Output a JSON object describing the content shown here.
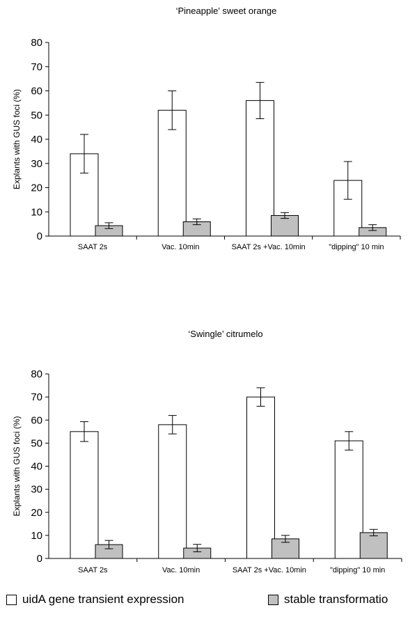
{
  "chart_data": [
    {
      "type": "bar",
      "title": "‘Pineapple’ sweet orange",
      "ylabel": "Explants with GUS foci (%)",
      "xlabel": "",
      "ylim": [
        0,
        80
      ],
      "yticks": [
        0,
        10,
        20,
        30,
        40,
        50,
        60,
        70,
        80
      ],
      "categories": [
        "SAAT 2s",
        "Vac. 10min",
        "SAAT 2s +Vac. 10min",
        "\"dipping\" 10 min"
      ],
      "series": [
        {
          "name": "uidA gene transient expression",
          "color": "#ffffff",
          "values": [
            34,
            52,
            56,
            23
          ],
          "errors": [
            8,
            8,
            7.5,
            7.8
          ]
        },
        {
          "name": "stable transformation",
          "color": "#c0c0c0",
          "values": [
            4.3,
            5.9,
            8.5,
            3.5
          ],
          "errors": [
            1.2,
            1.2,
            1.2,
            1.2
          ]
        }
      ]
    },
    {
      "type": "bar",
      "title": "‘Swingle’ citrumelo",
      "ylabel": "Explants with GUS foci (%)",
      "xlabel": "",
      "ylim": [
        0,
        80
      ],
      "yticks": [
        0,
        10,
        20,
        30,
        40,
        50,
        60,
        70,
        80
      ],
      "categories": [
        "SAAT 2s",
        "Vac. 10min",
        "SAAT 2s +Vac. 10min",
        "\"dipping\" 10 min"
      ],
      "series": [
        {
          "name": "uidA gene transient expression",
          "color": "#ffffff",
          "values": [
            55,
            58,
            70,
            51
          ],
          "errors": [
            4.3,
            4,
            4,
            4
          ]
        },
        {
          "name": "stable transformation",
          "color": "#c0c0c0",
          "values": [
            6,
            4.5,
            8.5,
            11.2
          ],
          "errors": [
            1.8,
            1.6,
            1.5,
            1.4
          ]
        }
      ]
    }
  ],
  "legend": [
    {
      "label": "uidA gene transient expression",
      "color": "#ffffff"
    },
    {
      "label": "stable transformatio",
      "color": "#c0c0c0"
    }
  ]
}
